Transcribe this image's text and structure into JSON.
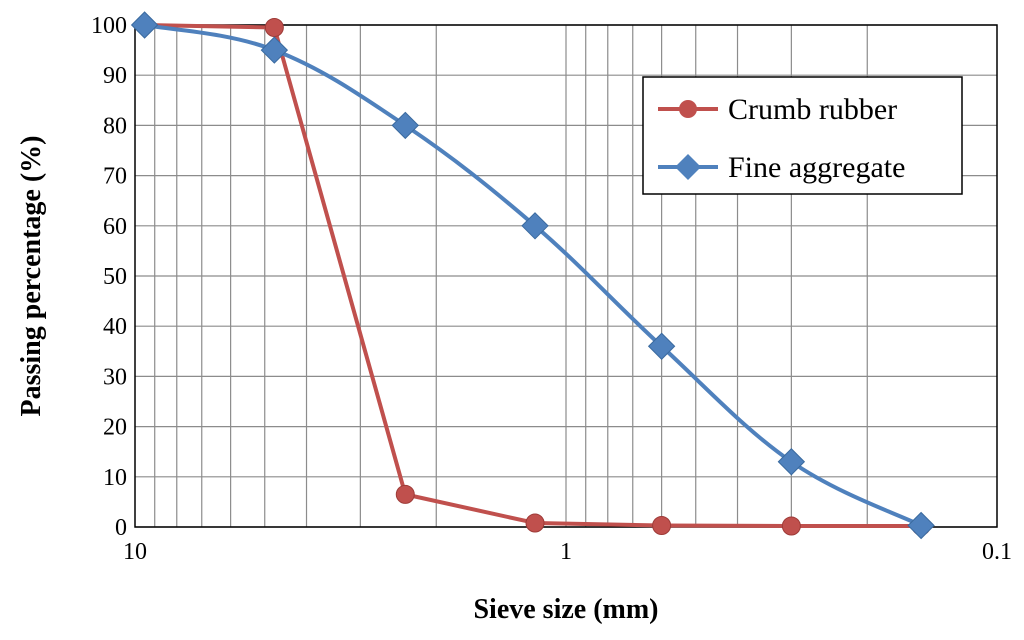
{
  "chart_data": {
    "type": "line",
    "title": "",
    "xlabel": "Sieve size (mm)",
    "ylabel": "Passing percentage (%)",
    "x_scale": "log",
    "x_reversed": true,
    "xlim": [
      10,
      0.1
    ],
    "ylim": [
      0,
      100
    ],
    "grid": true,
    "legend_position": "top-right",
    "x_tick_labels": [
      "10",
      "1",
      "0.1"
    ],
    "y_tick_labels": [
      "0",
      "10",
      "20",
      "30",
      "40",
      "50",
      "60",
      "70",
      "80",
      "90",
      "100"
    ],
    "series": [
      {
        "name": "Crumb rubber",
        "color": "#C0504D",
        "marker": "circle",
        "x": [
          9.5,
          4.75,
          2.36,
          1.18,
          0.6,
          0.3,
          0.15
        ],
        "y": [
          100,
          99.5,
          6.5,
          0.8,
          0.3,
          0.2,
          0.2
        ]
      },
      {
        "name": "Fine aggregate",
        "color": "#4F81BD",
        "marker": "diamond",
        "x": [
          9.5,
          4.75,
          2.36,
          1.18,
          0.6,
          0.3,
          0.15
        ],
        "y": [
          100,
          95,
          80,
          60,
          36,
          13,
          0.3
        ]
      }
    ]
  }
}
